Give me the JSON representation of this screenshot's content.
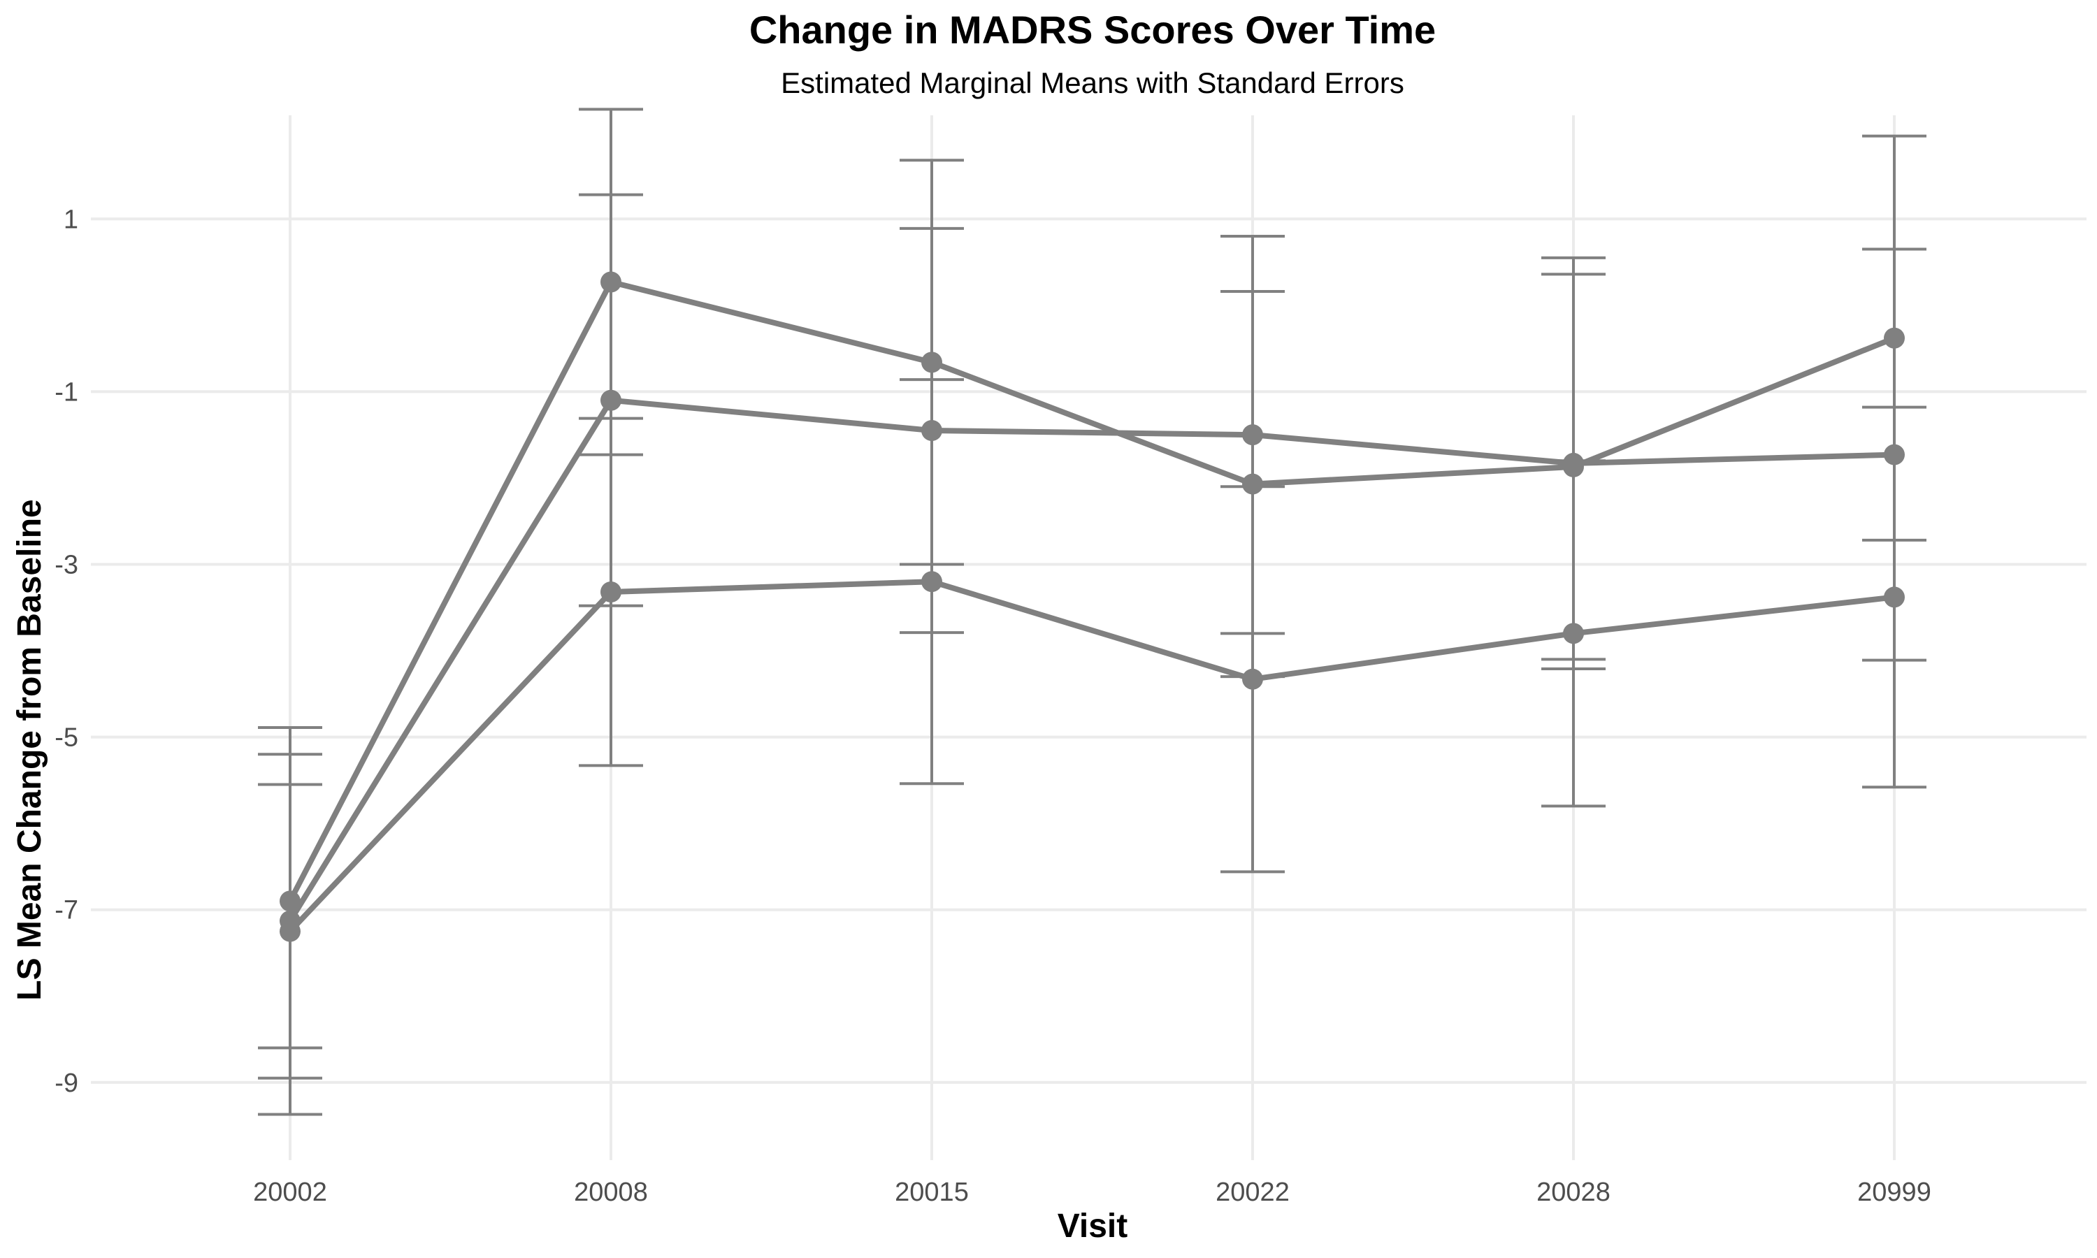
{
  "chart_data": {
    "type": "line",
    "title": "Change in MADRS Scores Over Time",
    "subtitle": "Estimated Marginal Means with Standard Errors",
    "xlabel": "Visit",
    "ylabel": "LS Mean Change from Baseline",
    "categories": [
      "20002",
      "20008",
      "20015",
      "20022",
      "20028",
      "20999"
    ],
    "yticks": [
      1,
      -1,
      -3,
      -5,
      -7,
      -9
    ],
    "ylim": [
      -9.9,
      2.2
    ],
    "grid": true,
    "legend": "none",
    "series_color": "#808080",
    "series": [
      {
        "values": [
          -6.9,
          0.27,
          -0.66,
          -2.07,
          -1.87,
          -0.38
        ],
        "se": [
          1.7,
          2.0,
          2.34,
          2.23,
          2.23,
          2.34
        ]
      },
      {
        "values": [
          -7.13,
          -1.1,
          -1.45,
          -1.5,
          -1.83,
          -1.73
        ],
        "se": [
          2.24,
          2.38,
          2.34,
          2.3,
          2.38,
          2.38
        ]
      },
      {
        "values": [
          -7.25,
          -3.32,
          -3.2,
          -4.33,
          -3.8,
          -3.38
        ],
        "se": [
          1.7,
          2.01,
          2.34,
          2.23,
          2.0,
          2.2
        ]
      }
    ]
  }
}
